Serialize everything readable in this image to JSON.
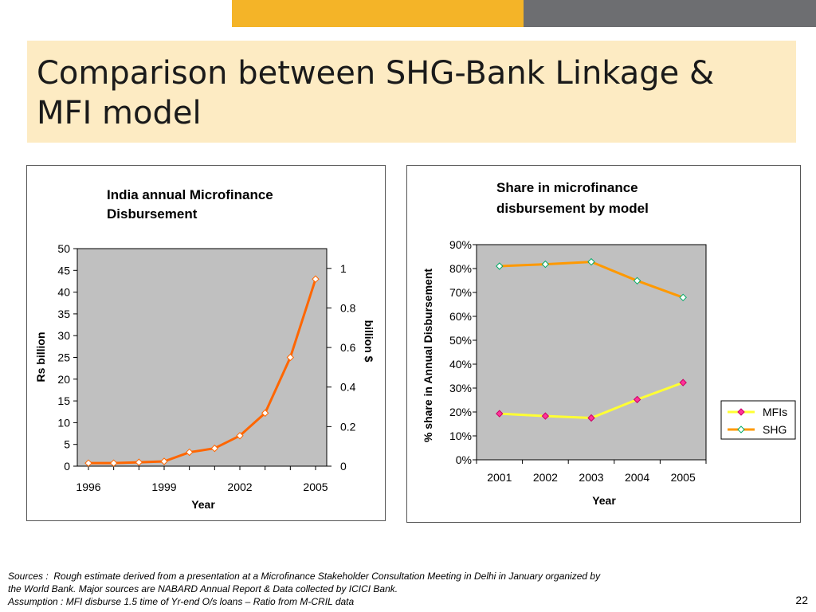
{
  "slide": {
    "title_line1": "Comparison between SHG-Bank Linkage &",
    "title_line2": "MFI model",
    "sources_line1": "Sources :  Rough estimate derived from a presentation at a Microfinance Stakeholder Consultation Meeting in Delhi in January organized by",
    "sources_line2": "the World Bank. Major sources are NABARD Annual Report & Data collected by ICICI Bank.",
    "assumption": "Assumption : MFI disburse 1.5 time of Yr-end O/s loans – Ratio from M-CRIL data",
    "page_number": "22"
  },
  "colors": {
    "top_bar_yellow": "#f4b428",
    "top_bar_gray": "#6d6e71",
    "title_background": "#fdebc3",
    "plot_area": "#c0c0c0",
    "orange_line": "#ff6600",
    "shg_line": "#ff9900",
    "mfi_line": "#ffff33",
    "mfi_marker": "#ff3399",
    "shg_marker": "#00aa66"
  },
  "chart_data": [
    {
      "type": "line",
      "title_line1": "India annual Microfinance",
      "title_line2": "Disbursement",
      "xlabel": "Year",
      "ylabel": "Rs billion",
      "y2label": "billion $",
      "x": [
        1996,
        1997,
        1998,
        1999,
        2000,
        2001,
        2002,
        2003,
        2004,
        2005
      ],
      "x_tick_labels": [
        "1996",
        "1999",
        "2002",
        "2005"
      ],
      "series": [
        {
          "values": [
            0.7,
            0.7,
            0.9,
            1.1,
            3.2,
            4.1,
            7.0,
            12.2,
            25.0,
            43.0
          ]
        }
      ],
      "ylim": [
        0,
        50
      ],
      "y_ticks": [
        "0",
        "5",
        "10",
        "15",
        "20",
        "25",
        "30",
        "35",
        "40",
        "45",
        "50"
      ],
      "y2lim": [
        0,
        1.1
      ],
      "y2_ticks": [
        "0",
        "0.2",
        "0.4",
        "0.6",
        "0.8",
        "1"
      ],
      "grid": false,
      "marker": "diamond"
    },
    {
      "type": "line",
      "title_line1": "Share in microfinance",
      "title_line2": "disbursement by model",
      "xlabel": "Year",
      "ylabel": "% share in Annual Disbursement",
      "categories": [
        "2001",
        "2002",
        "2003",
        "2004",
        "2005"
      ],
      "series": [
        {
          "name": "MFIs",
          "values": [
            19.3,
            18.3,
            17.5,
            25.2,
            32.3
          ]
        },
        {
          "name": "SHG",
          "values": [
            81.0,
            81.8,
            82.8,
            74.9,
            67.9
          ]
        }
      ],
      "ylim": [
        0,
        90
      ],
      "y_ticks": [
        "0%",
        "10%",
        "20%",
        "30%",
        "40%",
        "50%",
        "60%",
        "70%",
        "80%",
        "90%"
      ],
      "grid": false,
      "legend_position": "right",
      "marker": "diamond"
    }
  ]
}
